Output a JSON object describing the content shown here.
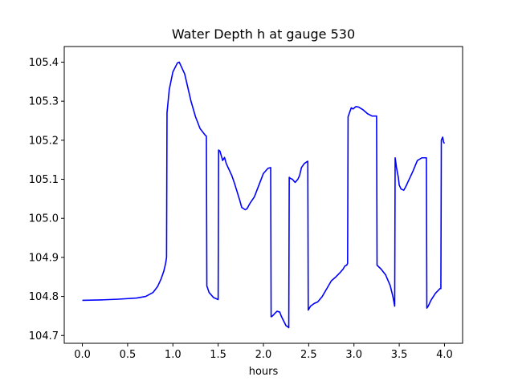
{
  "chart_data": {
    "type": "line",
    "title": "Water Depth h at gauge 530",
    "xlabel": "hours",
    "ylabel": "",
    "xlim": [
      -0.2,
      4.2
    ],
    "ylim": [
      104.68,
      105.44
    ],
    "xticks": [
      0.0,
      0.5,
      1.0,
      1.5,
      2.0,
      2.5,
      3.0,
      3.5,
      4.0
    ],
    "xtick_labels": [
      "0.0",
      "0.5",
      "1.0",
      "1.5",
      "2.0",
      "2.5",
      "3.0",
      "3.5",
      "4.0"
    ],
    "yticks": [
      104.7,
      104.8,
      104.9,
      105.0,
      105.1,
      105.2,
      105.3,
      105.4
    ],
    "ytick_labels": [
      "104.7",
      "104.8",
      "104.9",
      "105.0",
      "105.1",
      "105.2",
      "105.3",
      "105.4"
    ],
    "grid": false,
    "series": [
      {
        "color": "#0000ff",
        "x": [
          0.0,
          0.2,
          0.4,
          0.6,
          0.7,
          0.78,
          0.83,
          0.87,
          0.9,
          0.92,
          0.93,
          0.935,
          0.96,
          1.0,
          1.05,
          1.07,
          1.09,
          1.11,
          1.13,
          1.16,
          1.2,
          1.25,
          1.3,
          1.35,
          1.37,
          1.375,
          1.4,
          1.45,
          1.5,
          1.505,
          1.52,
          1.55,
          1.57,
          1.59,
          1.62,
          1.65,
          1.68,
          1.7,
          1.72,
          1.74,
          1.76,
          1.8,
          1.82,
          1.85,
          1.9,
          1.95,
          2.0,
          2.05,
          2.08,
          2.085,
          2.1,
          2.12,
          2.15,
          2.18,
          2.2,
          2.25,
          2.27,
          2.28,
          2.285,
          2.3,
          2.32,
          2.35,
          2.38,
          2.4,
          2.42,
          2.45,
          2.48,
          2.49,
          2.495,
          2.52,
          2.56,
          2.6,
          2.65,
          2.7,
          2.75,
          2.8,
          2.85,
          2.88,
          2.9,
          2.92,
          2.93,
          2.935,
          2.95,
          2.97,
          2.99,
          3.02,
          3.05,
          3.1,
          3.15,
          3.2,
          3.25,
          3.255,
          3.3,
          3.35,
          3.4,
          3.43,
          3.45,
          3.455,
          3.47,
          3.49,
          3.5,
          3.52,
          3.55,
          3.57,
          3.6,
          3.65,
          3.7,
          3.75,
          3.79,
          3.8,
          3.805,
          3.82,
          3.85,
          3.9,
          3.95,
          3.96,
          3.965,
          3.98,
          3.99,
          4.0
        ],
        "y": [
          104.79,
          104.791,
          104.793,
          104.796,
          104.8,
          104.81,
          104.825,
          104.845,
          104.865,
          104.885,
          104.9,
          105.27,
          105.33,
          105.375,
          105.398,
          105.4,
          105.39,
          105.38,
          105.37,
          105.34,
          105.3,
          105.26,
          105.23,
          105.215,
          105.21,
          104.827,
          104.81,
          104.797,
          104.792,
          105.175,
          105.172,
          105.148,
          105.156,
          105.14,
          105.125,
          105.11,
          105.09,
          105.075,
          105.06,
          105.045,
          105.028,
          105.022,
          105.025,
          105.038,
          105.055,
          105.085,
          105.115,
          105.128,
          105.13,
          104.748,
          104.75,
          104.755,
          104.762,
          104.76,
          104.748,
          104.725,
          104.722,
          104.72,
          105.105,
          105.102,
          105.1,
          105.092,
          105.1,
          105.11,
          105.13,
          105.14,
          105.145,
          105.146,
          104.765,
          104.775,
          104.782,
          104.786,
          104.8,
          104.82,
          104.84,
          104.85,
          104.862,
          104.87,
          104.878,
          104.88,
          104.885,
          105.26,
          105.27,
          105.283,
          105.28,
          105.286,
          105.285,
          105.278,
          105.268,
          105.262,
          105.262,
          104.88,
          104.87,
          104.855,
          104.828,
          104.8,
          104.775,
          105.155,
          105.13,
          105.105,
          105.085,
          105.075,
          105.072,
          105.08,
          105.095,
          105.12,
          105.148,
          105.155,
          105.155,
          105.155,
          104.77,
          104.775,
          104.79,
          104.808,
          104.82,
          104.82,
          105.2,
          105.208,
          105.195,
          105.192
        ]
      }
    ]
  }
}
